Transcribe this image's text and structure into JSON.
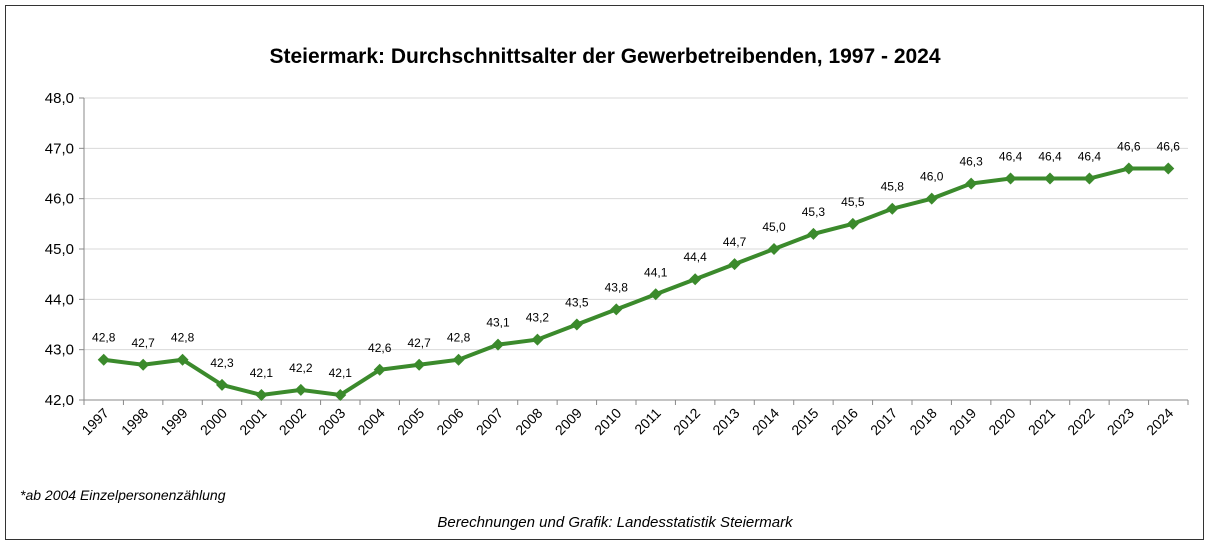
{
  "chart_data": {
    "type": "line",
    "title": "Steiermark: Durchschnittsalter der Gewerbetreibenden, 1997 - 2024",
    "categories": [
      "1997",
      "1998",
      "1999",
      "2000",
      "2001",
      "2002",
      "2003",
      "2004",
      "2005",
      "2006",
      "2007",
      "2008",
      "2009",
      "2010",
      "2011",
      "2012",
      "2013",
      "2014",
      "2015",
      "2016",
      "2017",
      "2018",
      "2019",
      "2020",
      "2021",
      "2022",
      "2023",
      "2024"
    ],
    "series": [
      {
        "name": "Durchschnittsalter",
        "color": "#3b8a2c",
        "values": [
          42.8,
          42.7,
          42.8,
          42.3,
          42.1,
          42.2,
          42.1,
          42.6,
          42.7,
          42.8,
          43.1,
          43.2,
          43.5,
          43.8,
          44.1,
          44.4,
          44.7,
          45.0,
          45.3,
          45.5,
          45.8,
          46.0,
          46.3,
          46.4,
          46.4,
          46.4,
          46.6,
          46.6
        ],
        "value_labels": [
          "42,8",
          "42,7",
          "42,8",
          "42,3",
          "42,1",
          "42,2",
          "42,1",
          "42,6",
          "42,7",
          "42,8",
          "43,1",
          "43,2",
          "43,5",
          "43,8",
          "44,1",
          "44,4",
          "44,7",
          "45,0",
          "45,3",
          "45,5",
          "45,8",
          "46,0",
          "46,3",
          "46,4",
          "46,4",
          "46,4",
          "46,6",
          "46,6"
        ]
      }
    ],
    "ylim": [
      42,
      48
    ],
    "yticks": [
      {
        "value": 42,
        "label": "42,0"
      },
      {
        "value": 43,
        "label": "43,0"
      },
      {
        "value": 44,
        "label": "44,0"
      },
      {
        "value": 45,
        "label": "45,0"
      },
      {
        "value": 46,
        "label": "46,0"
      },
      {
        "value": 47,
        "label": "47,0"
      },
      {
        "value": 48,
        "label": "48,0"
      }
    ],
    "grid": true,
    "footnote": "*ab 2004 Einzelpersonenzählung",
    "source": "Berechnungen und Grafik: Landesstatistik Steiermark"
  }
}
